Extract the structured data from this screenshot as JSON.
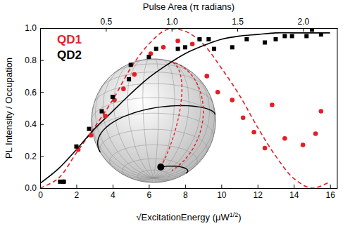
{
  "chart_data": {
    "type": "scatter",
    "x_label": "√ExcitationEnergy (μW1/2)",
    "y_label": "PL Intensity / Occupation",
    "x2_label": "Pulse Area (π radians)",
    "xlim": [
      0,
      16.4
    ],
    "xticks": [
      0,
      2,
      4,
      6,
      8,
      10,
      12,
      14,
      16
    ],
    "x2lim": [
      0,
      2.26
    ],
    "x2ticks": [
      0.5,
      {
        "value": 1,
        "label": "1.0"
      },
      1.5,
      {
        "value": 2,
        "label": "2.0"
      }
    ],
    "ylim": [
      0,
      1
    ],
    "yticks": [
      {
        "value": 0,
        "label": "0.0"
      },
      0.2,
      0.4,
      0.6,
      0.8,
      {
        "value": 1,
        "label": "1.0"
      }
    ],
    "grid": false,
    "legend": "upper left",
    "series": [
      {
        "name": "QD1",
        "color": "#e41e26",
        "type": "scatter",
        "marker": "circle",
        "x": [
          1.3,
          2.1,
          2.8,
          3.6,
          4.1,
          4.6,
          5.2,
          6.1,
          6.8,
          7.6,
          8.4,
          9.2,
          9.8,
          10.6,
          11.2,
          11.8,
          12.4,
          12.8,
          13.5,
          14.5,
          15.2,
          15.5
        ],
        "values": [
          0.04,
          0.24,
          0.33,
          0.45,
          0.55,
          0.62,
          0.71,
          0.84,
          0.88,
          0.92,
          0.9,
          0.7,
          0.6,
          0.55,
          0.44,
          0.35,
          0.25,
          0.52,
          0.31,
          0.27,
          0.34,
          0.48
        ]
      },
      {
        "name": "QD2",
        "color": "#000000",
        "type": "scatter",
        "marker": "square",
        "x": [
          1.1,
          1.3,
          2.0,
          2.7,
          3.4,
          4.0,
          4.9,
          5.0,
          6.0,
          6.4,
          7.6,
          8.0,
          8.8,
          9.3,
          9.6,
          10.6,
          11.4,
          12.4,
          13.0,
          13.5,
          13.9,
          14.7,
          15.0,
          15.5
        ],
        "values": [
          0.04,
          0.04,
          0.26,
          0.37,
          0.48,
          0.57,
          0.68,
          0.77,
          0.82,
          0.87,
          0.87,
          0.88,
          0.93,
          0.93,
          0.87,
          0.88,
          0.93,
          0.91,
          0.93,
          0.95,
          0.95,
          0.95,
          0.99,
          0.96
        ]
      },
      {
        "color": "#e41e26",
        "type": "line",
        "line_style": "dashed",
        "x": [
          0,
          1,
          2,
          3,
          4,
          5,
          6,
          7,
          8,
          9,
          10,
          11,
          12,
          13,
          14,
          15,
          16
        ],
        "values": [
          0,
          0.06,
          0.22,
          0.38,
          0.55,
          0.75,
          0.9,
          0.99,
          0.98,
          0.9,
          0.75,
          0.58,
          0.38,
          0.2,
          0.06,
          0,
          0.04
        ]
      },
      {
        "color": "#000000",
        "type": "line",
        "line_style": "solid",
        "x": [
          0,
          1,
          2,
          3,
          4,
          5,
          6,
          7,
          8,
          9,
          10,
          11,
          12,
          13,
          14,
          15,
          16
        ],
        "values": [
          0.03,
          0.12,
          0.24,
          0.37,
          0.48,
          0.59,
          0.69,
          0.77,
          0.84,
          0.89,
          0.93,
          0.95,
          0.96,
          0.97,
          0.97,
          0.97,
          0.97
        ]
      }
    ]
  }
}
